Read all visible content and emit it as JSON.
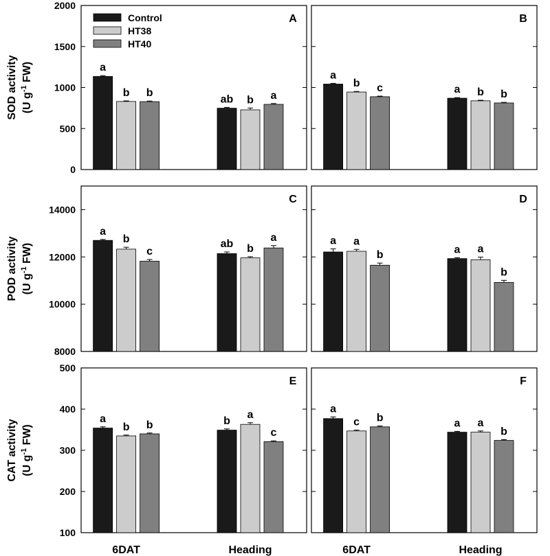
{
  "chart_data": {
    "type": "bar",
    "categories": [
      "6DAT",
      "Heading"
    ],
    "series_names": [
      "Control",
      "HT38",
      "HT40"
    ],
    "colors": {
      "Control": "#1a1a1a",
      "HT38": "#cccccc",
      "HT40": "#808080"
    },
    "legend": {
      "entries": [
        "Control",
        "HT38",
        "HT40"
      ],
      "position": "top-left of panel A"
    },
    "rows": [
      {
        "ylabel_line1": "SOD activity",
        "ylabel_line2": "(U g",
        "ylabel_sup": "-1",
        "ylabel_line2_end": " FW)",
        "ylim": [
          0,
          2000
        ],
        "yticks": [
          0,
          500,
          1000,
          1500,
          2000
        ],
        "ytick_labels": [
          "0",
          "500",
          "1000",
          "1500",
          "2000"
        ]
      },
      {
        "ylabel_line1": "POD activity",
        "ylabel_line2": "(U g",
        "ylabel_sup": "-1",
        "ylabel_line2_end": " FW)",
        "ylim": [
          8000,
          15000
        ],
        "yticks": [
          8000,
          10000,
          12000,
          14000
        ],
        "ytick_labels": [
          "8000",
          "10000",
          "12000",
          "14000"
        ]
      },
      {
        "ylabel_line1": "CAT activity",
        "ylabel_line2": "(U g",
        "ylabel_sup": "-1",
        "ylabel_line2_end": " FW)",
        "ylim": [
          100,
          500
        ],
        "yticks": [
          100,
          200,
          300,
          400,
          500
        ],
        "ytick_labels": [
          "100",
          "200",
          "300",
          "400",
          "500"
        ]
      }
    ],
    "panels": [
      {
        "letter": "A",
        "row": 0,
        "col": 0,
        "values": [
          [
            1135,
            830,
            828
          ],
          [
            748,
            728,
            795
          ]
        ],
        "errors": [
          [
            10,
            7,
            7
          ],
          [
            10,
            22,
            10
          ]
        ],
        "labels": [
          [
            "a",
            "b",
            "b"
          ],
          [
            "ab",
            "b",
            "a"
          ]
        ]
      },
      {
        "letter": "B",
        "row": 0,
        "col": 1,
        "values": [
          [
            1042,
            945,
            888
          ],
          [
            870,
            838,
            812
          ]
        ],
        "errors": [
          [
            9,
            7,
            7
          ],
          [
            7,
            7,
            7
          ]
        ],
        "labels": [
          [
            "a",
            "b",
            "c"
          ],
          [
            "a",
            "b",
            "b"
          ]
        ]
      },
      {
        "letter": "C",
        "row": 1,
        "col": 0,
        "values": [
          [
            12700,
            12330,
            11820
          ],
          [
            12140,
            11960,
            12380
          ]
        ],
        "errors": [
          [
            40,
            80,
            70
          ],
          [
            70,
            50,
            100
          ]
        ],
        "labels": [
          [
            "a",
            "b",
            "c"
          ],
          [
            "ab",
            "b",
            "a"
          ]
        ]
      },
      {
        "letter": "D",
        "row": 1,
        "col": 1,
        "values": [
          [
            12210,
            12240,
            11650
          ],
          [
            11930,
            11880,
            10920
          ]
        ],
        "errors": [
          [
            130,
            80,
            90
          ],
          [
            40,
            110,
            90
          ]
        ],
        "labels": [
          [
            "a",
            "a",
            "b"
          ],
          [
            "a",
            "a",
            "b"
          ]
        ]
      },
      {
        "letter": "E",
        "row": 2,
        "col": 0,
        "values": [
          [
            354,
            335,
            340
          ],
          [
            349,
            363,
            321
          ]
        ],
        "errors": [
          [
            3,
            2,
            2
          ],
          [
            3,
            4,
            2
          ]
        ],
        "labels": [
          [
            "a",
            "b",
            "b"
          ],
          [
            "b",
            "a",
            "c"
          ]
        ]
      },
      {
        "letter": "F",
        "row": 2,
        "col": 1,
        "values": [
          [
            377,
            347,
            357
          ],
          [
            344,
            344,
            324
          ]
        ],
        "errors": [
          [
            4,
            2,
            2
          ],
          [
            2,
            3,
            2
          ]
        ],
        "labels": [
          [
            "a",
            "c",
            "b"
          ],
          [
            "a",
            "a",
            "b"
          ]
        ]
      }
    ]
  }
}
